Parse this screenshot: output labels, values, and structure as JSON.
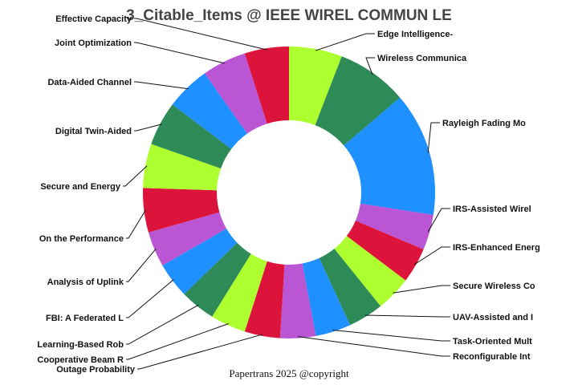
{
  "chart_data": {
    "type": "pie",
    "title": "3_Citable_Items @ IEEE WIREL COMMUN LE",
    "footer": "Papertrans 2025 @copyright",
    "donut": true,
    "start": "top, clockwise",
    "categories": [
      "Edge Intelligence-",
      "Wireless Communica",
      "Rayleigh Fading Mo",
      "IRS-Assisted Wirel",
      "IRS-Enhanced Energ",
      "Secure Wireless Co",
      "UAV-Assisted and I",
      "Task-Oriented Mult",
      "Reconfigurable Int",
      "Outage Probability",
      "Cooperative Beam R",
      "Learning-Based Rob",
      "FBI: A Federated L",
      "Analysis of Uplink",
      "On the Performance",
      "Secure and Energy",
      "Digital Twin-Aided",
      "Data-Aided Channel",
      "Joint Optimization",
      "Effective Capacity"
    ],
    "values": [
      6,
      8,
      14,
      4,
      4,
      4,
      4,
      4,
      4,
      4,
      4,
      4,
      4,
      4,
      5,
      5,
      5,
      5,
      5,
      5
    ],
    "colors": [
      "#adff2f",
      "#2e8b57",
      "#1e90ff",
      "#ba55d3",
      "#dc143c",
      "#adff2f",
      "#2e8b57",
      "#1e90ff",
      "#ba55d3",
      "#dc143c",
      "#adff2f",
      "#2e8b57",
      "#1e90ff",
      "#ba55d3",
      "#dc143c",
      "#adff2f",
      "#2e8b57",
      "#1e90ff",
      "#ba55d3",
      "#dc143c"
    ]
  }
}
